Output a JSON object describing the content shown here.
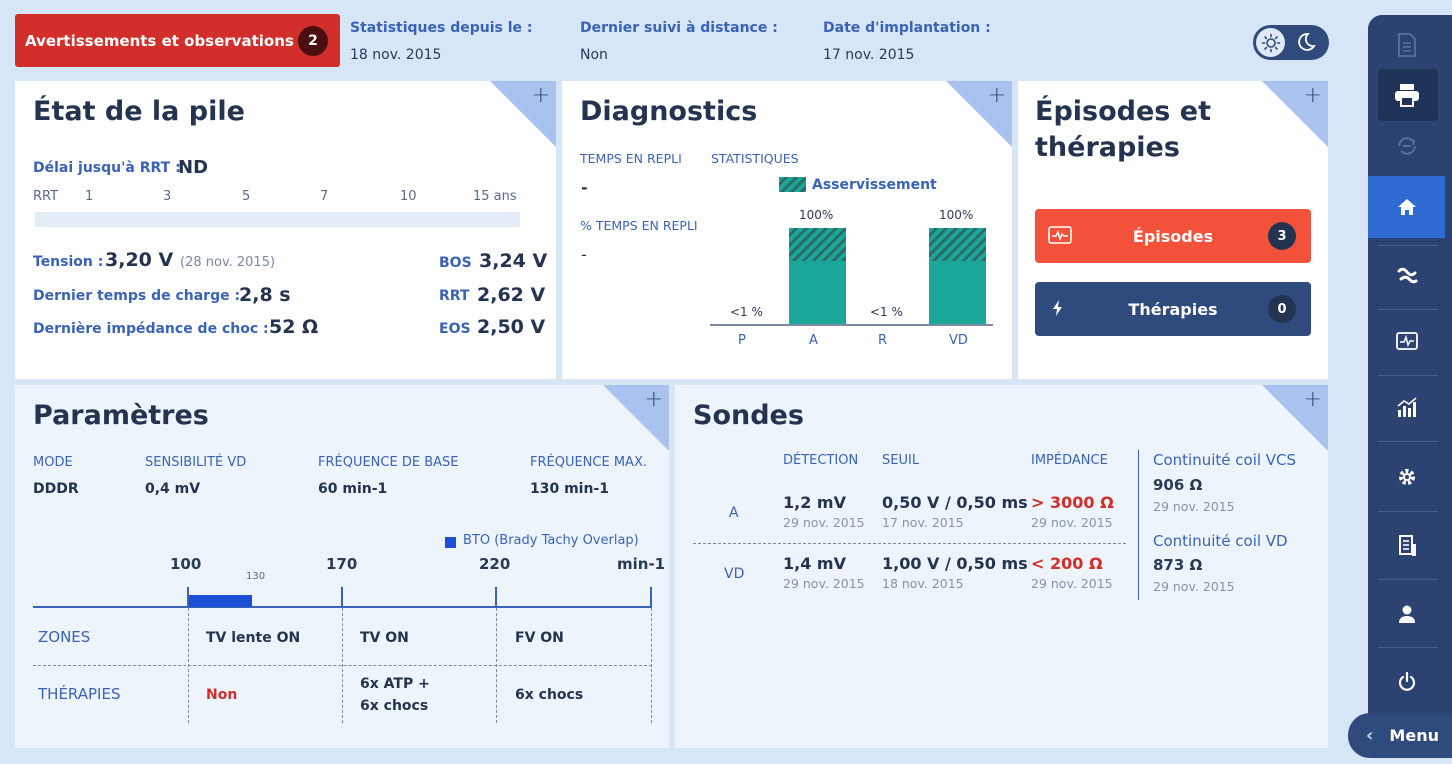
{
  "header": {
    "warnings_label": "Avertissements et observations",
    "warnings_count": "2",
    "stats_label": "Statistiques depuis le :",
    "stats_value": "18 nov. 2015",
    "remote_label": "Dernier suivi à distance :",
    "remote_value": "Non",
    "implant_label": "Date d'implantation :",
    "implant_value": "17 nov. 2015"
  },
  "battery": {
    "title": "État de la pile",
    "rrt_delay_label": "Délai jusqu'à RRT :",
    "rrt_delay_value": "ND",
    "scale_label": "RRT",
    "scale_ticks": [
      "1",
      "3",
      "5",
      "7",
      "10",
      "15 ans"
    ],
    "voltage_label": "Tension :",
    "voltage_value": "3,20 V",
    "voltage_date": "(28 nov. 2015)",
    "charge_label": "Dernier temps de charge :",
    "charge_value": "2,8 s",
    "impedance_label": "Dernière impédance de choc :",
    "impedance_value": "52 Ω",
    "bos_label": "BOS",
    "bos_value": "3,24 V",
    "rrt_label": "RRT",
    "rrt_value": "2,62 V",
    "eos_label": "EOS",
    "eos_value": "2,50 V"
  },
  "diagnostics": {
    "title": "Diagnostics",
    "fallback_time_label": "TEMPS EN REPLI",
    "statistics_label": "STATISTIQUES",
    "fallback_time_value": "-",
    "pct_fallback_label": "% TEMPS EN REPLI",
    "pct_fallback_value": "-",
    "legend": "Asservissement"
  },
  "chart_data": {
    "type": "bar",
    "categories": [
      "P",
      "A",
      "R",
      "VD"
    ],
    "values": [
      1,
      100,
      1,
      100
    ],
    "value_labels": [
      "<1 %",
      "100%",
      "<1 %",
      "100%"
    ],
    "series": [
      {
        "name": "Asservissement"
      }
    ]
  },
  "episodes": {
    "title_line1": "Épisodes et",
    "title_line2": "thérapies",
    "episodes_label": "Épisodes",
    "episodes_count": "3",
    "therapies_label": "Thérapies",
    "therapies_count": "0",
    "episodes_color": "#f4513a",
    "therapies_color": "#2f4a7c"
  },
  "params": {
    "title": "Paramètres",
    "mode_label": "MODE",
    "mode_value": "DDDR",
    "sens_label": "SENSIBILITÉ VD",
    "sens_value": "0,4 mV",
    "base_label": "FRÉQUENCE DE BASE",
    "base_value": "60 min-1",
    "max_label": "FRÉQUENCE MAX.",
    "max_value": "130 min-1",
    "bto_legend": "BTO (Brady Tachy Overlap)",
    "scale": [
      "100",
      "130",
      "170",
      "220",
      "min-1"
    ],
    "zones_label": "ZONES",
    "therapies_label": "THÉRAPIES",
    "zones": [
      "TV lente ON",
      "TV ON",
      "FV ON"
    ],
    "therapies": [
      "Non",
      "6x ATP +",
      "6x chocs",
      "6x chocs"
    ]
  },
  "leads": {
    "title": "Sondes",
    "col_detection": "DÉTECTION",
    "col_threshold": "SEUIL",
    "col_impedance": "IMPÉDANCE",
    "rows": [
      {
        "chamber": "A",
        "detection": "1,2 mV",
        "detection_date": "29 nov. 2015",
        "threshold": "0,50 V / 0,50 ms",
        "threshold_date": "17 nov. 2015",
        "impedance": "> 3000 Ω",
        "impedance_date": "29 nov. 2015"
      },
      {
        "chamber": "VD",
        "detection": "1,4 mV",
        "detection_date": "29 nov. 2015",
        "threshold": "1,00 V / 0,50 ms",
        "threshold_date": "18 nov. 2015",
        "impedance": "< 200 Ω",
        "impedance_date": "29 nov. 2015"
      }
    ],
    "coil_vcs_label": "Continuité coil VCS",
    "coil_vcs_value": "906 Ω",
    "coil_vcs_date": "29 nov. 2015",
    "coil_vd_label": "Continuité coil VD",
    "coil_vd_value": "873 Ω",
    "coil_vd_date": "29 nov. 2015"
  },
  "sidebar": {
    "icons": [
      "document-icon",
      "print-icon",
      "sync-icon",
      "home-icon",
      "leads-icon",
      "ecg-icon",
      "statistics-icon",
      "settings-icon",
      "report-icon",
      "patient-icon",
      "power-icon"
    ],
    "menu_label": "Menu"
  }
}
